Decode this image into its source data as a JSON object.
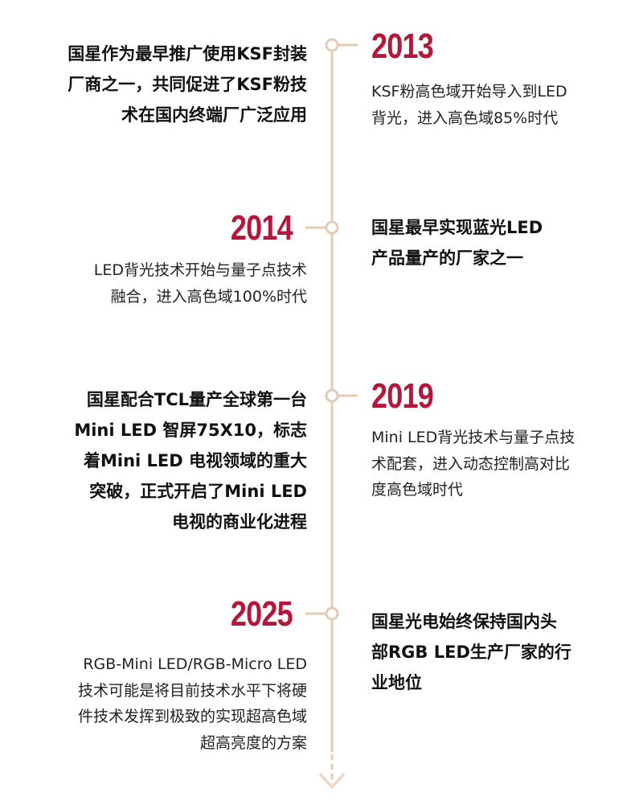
{
  "colors": {
    "year": "#b5173b",
    "line": "#e6cbb2"
  },
  "events": [
    {
      "year": "2013",
      "side_year": "right",
      "desc": [
        "KSF粉高色域开始导入到LED",
        "背光，进入高色域85%时代"
      ],
      "company": [
        "国星作为最早推广使用KSF封装",
        "厂商之一，共同促进了KSF粉技",
        "术在国内终端厂广泛应用"
      ]
    },
    {
      "year": "2014",
      "side_year": "left",
      "desc": [
        "LED背光技术开始与量子点技术",
        "融合，进入高色域100%时代"
      ],
      "company": [
        "国星最早实现蓝光LED",
        "产品量产的厂家之一"
      ]
    },
    {
      "year": "2019",
      "side_year": "right",
      "desc": [
        "Mini LED背光技术与量子点技",
        "术配套，进入动态控制高对比",
        "度高色域时代"
      ],
      "company": [
        "国星配合TCL量产全球第一台",
        "Mini LED 智屏75X10，标志",
        "着Mini LED 电视领域的重大",
        "突破，正式开启了Mini LED",
        "电视的商业化进程"
      ]
    },
    {
      "year": "2025",
      "side_year": "left",
      "desc": [
        "RGB-Mini LED/RGB-Micro LED",
        "技术可能是将目前技术水平下将硬",
        "件技术发挥到极致的实现超高色域",
        "超高亮度的方案"
      ],
      "company": [
        "国星光电始终保持国内头",
        "部RGB LED生产厂家的行",
        "业地位"
      ]
    }
  ]
}
